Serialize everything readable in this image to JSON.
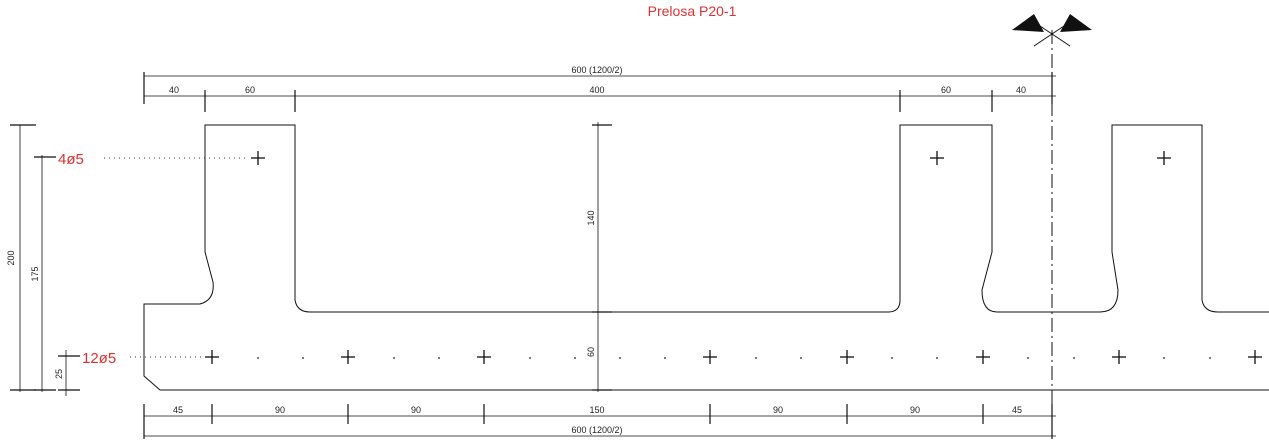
{
  "title": "Prelosa P20-1",
  "colors": {
    "accent": "#e03030",
    "line": "#111111"
  },
  "symbols": {
    "axis_marker": "double-flag-icon",
    "rebar_marker": "cross-icon"
  },
  "dims_top": {
    "overall": "600 (1200/2)",
    "segments": [
      "40",
      "60",
      "400",
      "60",
      "40"
    ]
  },
  "dims_bottom": {
    "overall": "600 (1200/2)",
    "segments": [
      "45",
      "90",
      "90",
      "150",
      "90",
      "90",
      "45"
    ]
  },
  "dims_left": {
    "total": "200",
    "upper": "175",
    "lower": "25"
  },
  "dims_center": {
    "rib_height": "140",
    "slab_height": "60"
  },
  "rebar": {
    "top_label": "4ø5",
    "bottom_label": "12ø5"
  }
}
